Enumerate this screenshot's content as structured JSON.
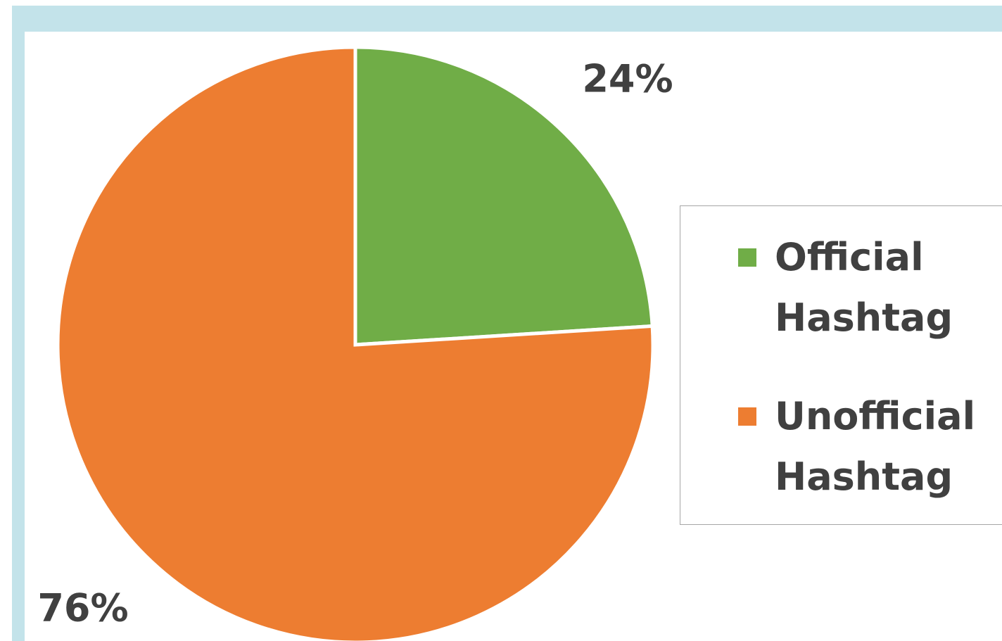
{
  "chart_data": {
    "type": "pie",
    "slices": [
      {
        "label": "Official Hashtag",
        "value": 24,
        "display": "24%",
        "color": "#70ad47"
      },
      {
        "label": "Unofficial Hashtag",
        "value": 76,
        "display": "76%",
        "color": "#ed7d31"
      }
    ],
    "legend_position": "right",
    "title": ""
  },
  "legend": {
    "items": [
      {
        "label": "Official\nHashtag",
        "color": "#70ad47"
      },
      {
        "label": "Unofficial\nHashtag",
        "color": "#ed7d31"
      }
    ]
  },
  "colors": {
    "frame": "#c3e3ea",
    "label_text": "#404040",
    "legend_border": "#a6a6a6"
  }
}
